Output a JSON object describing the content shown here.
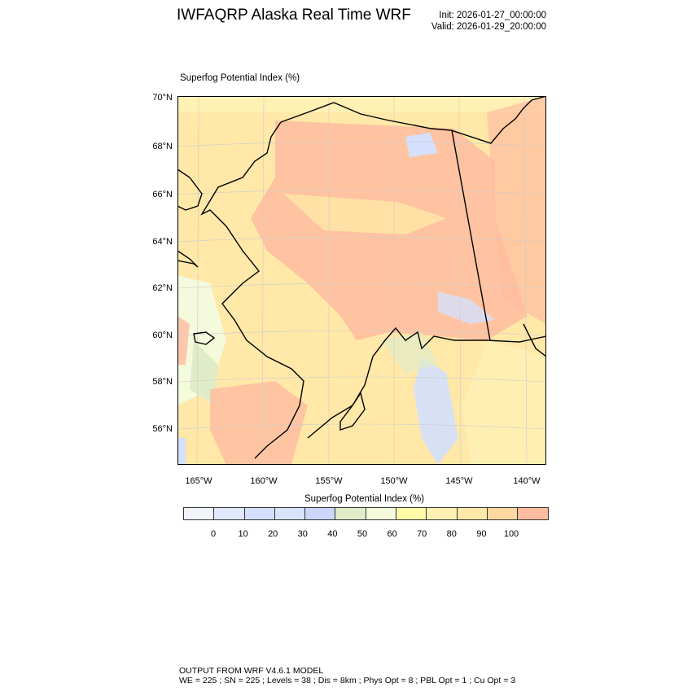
{
  "header": {
    "title": "IWFAQRP Alaska Real Time WRF",
    "init": "Init: 2026-01-27_00:00:00",
    "valid": "Valid: 2026-01-29_20:00:00"
  },
  "plot": {
    "label": "Superfog Potential Index   (%)",
    "lat_labels": [
      "70°N",
      "68°N",
      "66°N",
      "64°N",
      "62°N",
      "60°N",
      "58°N",
      "56°N"
    ],
    "lon_labels": [
      "165°W",
      "160°W",
      "155°W",
      "150°W",
      "145°W",
      "140°W"
    ]
  },
  "colorbar": {
    "title": "Superfog Potential Index  (%)",
    "labels": [
      "0",
      "10",
      "20",
      "30",
      "40",
      "50",
      "60",
      "70",
      "80",
      "90",
      "100"
    ],
    "colors": [
      "#f0f3f8",
      "#e0e8fc",
      "#d4e0fc",
      "#d8e4fc",
      "#ccd6fc",
      "#e0ecc8",
      "#f4fadc",
      "#fffca8",
      "#fff0b4",
      "#ffe8a8",
      "#ffd8a0",
      "#ffbca0"
    ]
  },
  "footer": {
    "line1": "OUTPUT FROM WRF V4.6.1 MODEL",
    "line2": "WE = 225 ; SN = 225 ; Levels = 38 ; Dis = 8km ; Phys Opt = 8 ; PBL Opt = 1 ; Cu Opt = 3"
  }
}
